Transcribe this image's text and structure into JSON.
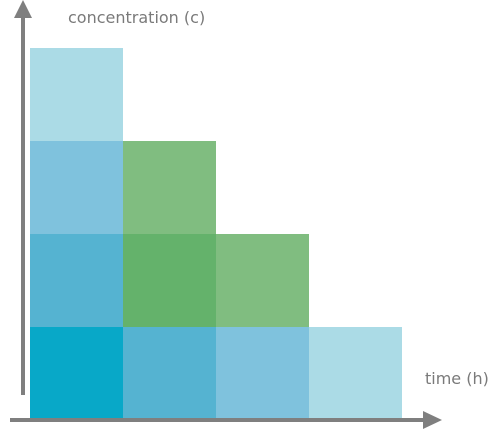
{
  "labels": {
    "y_axis": "concentration (c)",
    "x_axis": "time (h)"
  },
  "colors": {
    "axis": "#7f7f7f",
    "label": "#7a7a7a",
    "teal_dark": "#08a8c8",
    "blue_mid": "#55b3d1",
    "blue_soft": "#7fc2dd",
    "blue_light": "#abdbe6",
    "green_dark": "#64b26b",
    "green_light": "#80bd80"
  },
  "grid": {
    "rows": 4,
    "cols": 4,
    "cells": [
      {
        "name": "cell-r1-c1",
        "row": 1,
        "col": 1,
        "color_key": "teal_dark"
      },
      {
        "name": "cell-r1-c2",
        "row": 1,
        "col": 2,
        "color_key": "blue_mid"
      },
      {
        "name": "cell-r1-c3",
        "row": 1,
        "col": 3,
        "color_key": "blue_soft"
      },
      {
        "name": "cell-r1-c4",
        "row": 1,
        "col": 4,
        "color_key": "blue_light"
      },
      {
        "name": "cell-r2-c1",
        "row": 2,
        "col": 1,
        "color_key": "blue_mid"
      },
      {
        "name": "cell-r2-c2",
        "row": 2,
        "col": 2,
        "color_key": "green_dark"
      },
      {
        "name": "cell-r2-c3",
        "row": 2,
        "col": 3,
        "color_key": "green_light"
      },
      {
        "name": "cell-r3-c1",
        "row": 3,
        "col": 1,
        "color_key": "blue_soft"
      },
      {
        "name": "cell-r3-c2",
        "row": 3,
        "col": 2,
        "color_key": "green_light"
      },
      {
        "name": "cell-r4-c1",
        "row": 4,
        "col": 1,
        "color_key": "blue_light"
      }
    ]
  }
}
